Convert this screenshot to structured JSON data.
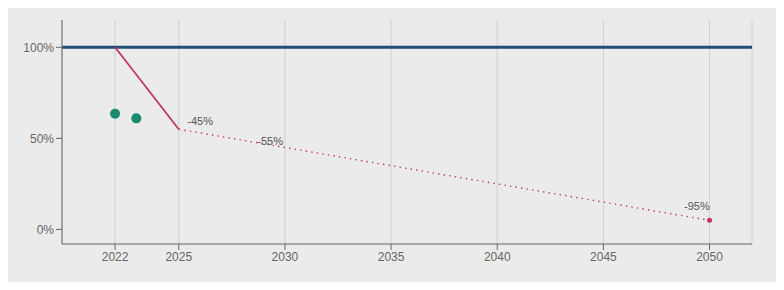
{
  "chart_data": {
    "type": "line",
    "xlim": [
      2019.5,
      2052
    ],
    "ylim": [
      -0.08,
      1.15
    ],
    "xticks": [
      2022,
      2025,
      2030,
      2035,
      2040,
      2045,
      2050
    ],
    "yticks": [
      {
        "value": 0.0,
        "label": "0%"
      },
      {
        "value": 0.5,
        "label": "50%"
      },
      {
        "value": 1.0,
        "label": "100%"
      }
    ],
    "grid": "x",
    "series": [
      {
        "type": "hline",
        "color": "#1f4e79",
        "values": [
          1.0
        ]
      },
      {
        "type": "line",
        "line_style": "solid",
        "color": "#c0395a",
        "x": [
          2022,
          2025
        ],
        "values": [
          1.0,
          0.55
        ]
      },
      {
        "type": "line",
        "line_style": "dotted",
        "color": "#c0395a",
        "x": [
          2025,
          2050
        ],
        "values": [
          0.55,
          0.05
        ]
      },
      {
        "type": "scatter",
        "color": "#1a8a6e",
        "x": [
          2022,
          2023
        ],
        "values": [
          0.635,
          0.61
        ]
      },
      {
        "type": "scatter",
        "color": "#c0395a",
        "x": [
          2050
        ],
        "values": [
          0.05
        ]
      }
    ],
    "annotations": [
      {
        "text": "-45%",
        "x": 2025.4,
        "y": 0.565
      },
      {
        "text": "-55%",
        "x": 2028.7,
        "y": 0.455
      },
      {
        "text": "-95%",
        "x": 2048.8,
        "y": 0.095
      }
    ]
  }
}
